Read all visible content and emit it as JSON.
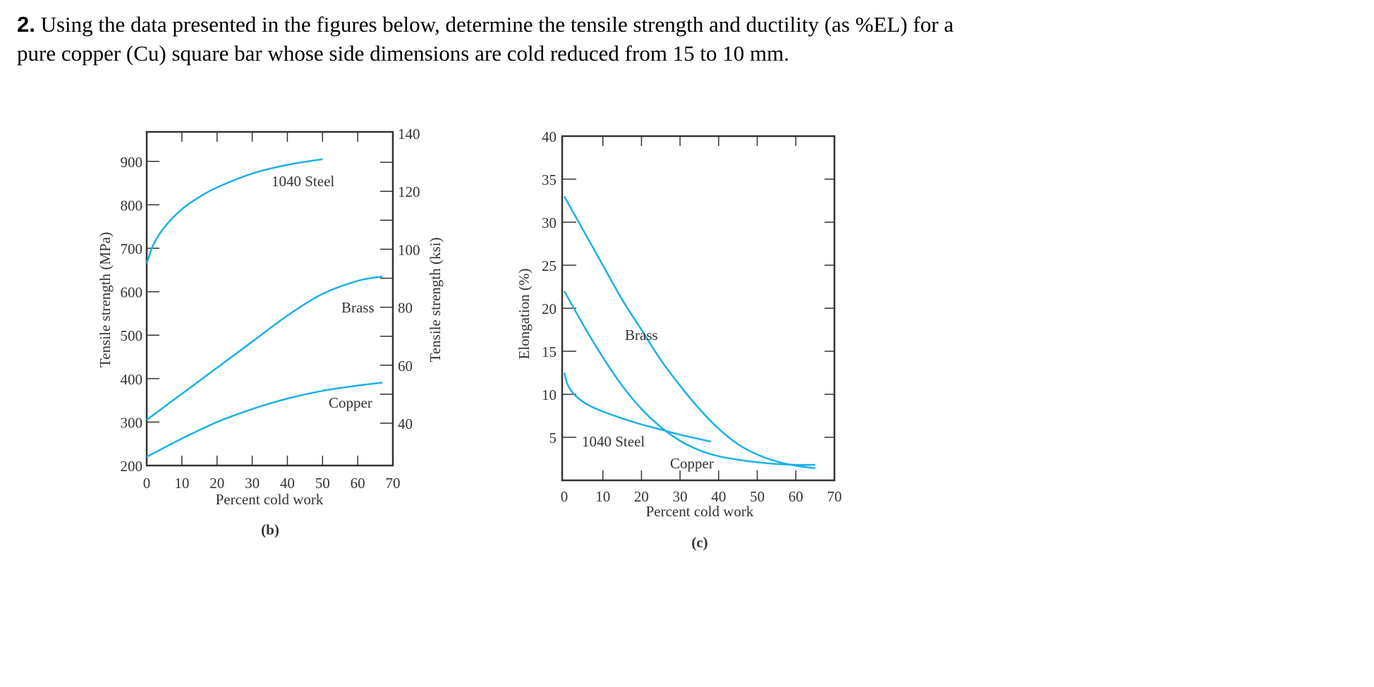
{
  "question": {
    "number": "2.",
    "line1": "Using the data presented in the figures below, determine the tensile strength and ductility (as %EL) for a",
    "line2": "pure copper (Cu) square bar whose side dimensions are cold reduced from 15 to 10 mm."
  },
  "chart_data": [
    {
      "type": "line",
      "caption": "(b)",
      "xlabel": "Percent cold work",
      "ylabel": "Tensile strength (MPa)",
      "ylabel_right": "Tensile strength (ksi)",
      "xlim": [
        0,
        70
      ],
      "ylim": [
        200,
        960
      ],
      "ylim_right": [
        29,
        140
      ],
      "xticks": [
        0,
        10,
        20,
        30,
        40,
        50,
        60,
        70
      ],
      "yticks": [
        200,
        300,
        400,
        500,
        600,
        700,
        800,
        900
      ],
      "yticks_right": [
        40,
        60,
        80,
        100,
        120,
        140
      ],
      "line_color": "#1ab0e8",
      "grid": false,
      "series": [
        {
          "name": "1040 Steel",
          "x": [
            0,
            2,
            5,
            10,
            15,
            20,
            30,
            40,
            50
          ],
          "y": [
            665,
            710,
            748,
            790,
            818,
            840,
            872,
            892,
            905
          ]
        },
        {
          "name": "Brass",
          "x": [
            0,
            10,
            20,
            30,
            40,
            50,
            60,
            67
          ],
          "y": [
            305,
            365,
            425,
            485,
            545,
            595,
            625,
            635
          ]
        },
        {
          "name": "Copper",
          "x": [
            0,
            10,
            20,
            30,
            40,
            50,
            60,
            67
          ],
          "y": [
            220,
            262,
            300,
            330,
            354,
            372,
            384,
            391
          ]
        }
      ]
    },
    {
      "type": "line",
      "caption": "(c)",
      "xlabel": "Percent cold work",
      "ylabel": "Elongation (%)",
      "xlim": [
        0,
        70
      ],
      "ylim": [
        0,
        40
      ],
      "xticks": [
        0,
        10,
        20,
        30,
        40,
        50,
        60,
        70
      ],
      "yticks": [
        5,
        10,
        15,
        20,
        25,
        30,
        35,
        40
      ],
      "line_color": "#1ab0e8",
      "grid": false,
      "series": [
        {
          "name": "Brass",
          "x": [
            0,
            5,
            10,
            15,
            20,
            25,
            30,
            35,
            40,
            45,
            50,
            55,
            60,
            65
          ],
          "y": [
            33,
            29,
            25,
            21,
            17.5,
            14,
            11,
            8.3,
            6,
            4.2,
            3,
            2.2,
            1.7,
            1.4
          ]
        },
        {
          "name": "Copper",
          "x": [
            0,
            5,
            10,
            15,
            20,
            25,
            30,
            35,
            40,
            45,
            50,
            55,
            60,
            65
          ],
          "y": [
            22,
            18,
            14.3,
            11,
            8.3,
            6.2,
            4.6,
            3.5,
            2.8,
            2.4,
            2.1,
            1.9,
            1.8,
            1.8
          ]
        },
        {
          "name": "1040 Steel",
          "x": [
            0,
            1,
            3,
            6,
            10,
            15,
            20,
            25,
            30,
            35,
            38
          ],
          "y": [
            12.5,
            11,
            9.8,
            8.8,
            8,
            7.2,
            6.5,
            5.9,
            5.3,
            4.8,
            4.5
          ]
        }
      ]
    }
  ]
}
